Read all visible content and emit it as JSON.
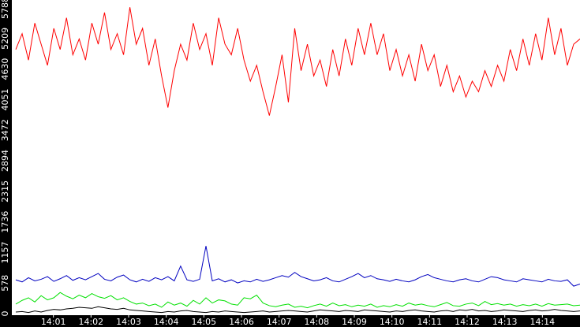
{
  "chart_data": {
    "type": "line",
    "xlim": [
      0,
      15
    ],
    "xticks": [
      {
        "value": 1,
        "label": "14:01"
      },
      {
        "value": 2,
        "label": "14:02"
      },
      {
        "value": 3,
        "label": "14:03"
      },
      {
        "value": 4,
        "label": "14:04"
      },
      {
        "value": 5,
        "label": "14:05"
      },
      {
        "value": 6,
        "label": "14:06"
      },
      {
        "value": 7,
        "label": "14:07"
      },
      {
        "value": 8,
        "label": "14:08"
      },
      {
        "value": 9,
        "label": "14:09"
      },
      {
        "value": 10,
        "label": "14:10"
      },
      {
        "value": 11,
        "label": "14:11"
      },
      {
        "value": 12,
        "label": "14:12"
      },
      {
        "value": 13,
        "label": "14:13"
      },
      {
        "value": 14,
        "label": "14:14"
      }
    ],
    "ylim": [
      0,
      5788
    ],
    "yticks": [
      0,
      578,
      1157,
      1736,
      2315,
      2894,
      3472,
      4051,
      4630,
      5209,
      5788
    ],
    "grid": false,
    "series": [
      {
        "color": "#ff0000",
        "values": [
          5000,
          5300,
          4800,
          5500,
          5100,
          4700,
          5400,
          5000,
          5600,
          4900,
          5200,
          4800,
          5500,
          5100,
          5700,
          5000,
          5300,
          4900,
          5800,
          5100,
          5400,
          4700,
          5200,
          4500,
          3900,
          4600,
          5100,
          4800,
          5500,
          5000,
          5300,
          4700,
          5600,
          5100,
          4900,
          5400,
          4800,
          4400,
          4700,
          4200,
          3750,
          4300,
          4900,
          4000,
          5400,
          4600,
          5100,
          4500,
          4800,
          4300,
          5000,
          4500,
          5200,
          4700,
          5400,
          4900,
          5500,
          4900,
          5300,
          4600,
          5000,
          4500,
          4900,
          4400,
          5100,
          4600,
          4900,
          4300,
          4700,
          4200,
          4500,
          4100,
          4400,
          4200,
          4600,
          4300,
          4700,
          4400,
          5000,
          4600,
          5200,
          4700,
          5300,
          4800,
          5600,
          4900,
          5400,
          4700,
          5100,
          5200
        ]
      },
      {
        "color": "#0000c0",
        "values": [
          640,
          600,
          680,
          620,
          650,
          700,
          610,
          660,
          720,
          630,
          680,
          640,
          700,
          760,
          650,
          620,
          690,
          730,
          640,
          600,
          650,
          610,
          680,
          640,
          700,
          620,
          900,
          640,
          610,
          650,
          1280,
          620,
          660,
          600,
          640,
          580,
          620,
          600,
          650,
          610,
          640,
          680,
          720,
          690,
          780,
          700,
          660,
          620,
          640,
          680,
          620,
          600,
          650,
          700,
          760,
          680,
          720,
          660,
          640,
          610,
          650,
          620,
          600,
          640,
          700,
          740,
          680,
          650,
          620,
          600,
          640,
          660,
          620,
          600,
          650,
          700,
          680,
          640,
          620,
          600,
          660,
          640,
          620,
          600,
          650,
          620,
          610,
          640,
          520,
          560
        ]
      },
      {
        "color": "#00e000",
        "values": [
          180,
          250,
          300,
          220,
          340,
          260,
          300,
          400,
          330,
          280,
          350,
          300,
          380,
          320,
          290,
          340,
          260,
          300,
          230,
          180,
          200,
          150,
          180,
          120,
          220,
          160,
          200,
          140,
          250,
          180,
          300,
          200,
          260,
          240,
          180,
          160,
          300,
          280,
          350,
          200,
          150,
          130,
          160,
          180,
          120,
          140,
          110,
          150,
          180,
          140,
          200,
          150,
          170,
          130,
          160,
          140,
          180,
          120,
          150,
          130,
          170,
          140,
          200,
          160,
          180,
          150,
          130,
          170,
          210,
          150,
          140,
          180,
          200,
          150,
          230,
          170,
          190,
          160,
          180,
          140,
          170,
          150,
          180,
          140,
          190,
          160,
          170,
          180,
          150,
          160
        ]
      },
      {
        "color": "#000000",
        "values": [
          30,
          40,
          20,
          50,
          30,
          60,
          80,
          70,
          90,
          100,
          120,
          110,
          100,
          130,
          110,
          90,
          80,
          100,
          70,
          60,
          50,
          40,
          30,
          20,
          40,
          30,
          50,
          60,
          40,
          30,
          20,
          40,
          30,
          50,
          40,
          30,
          20,
          30,
          40,
          50,
          30,
          40,
          50,
          60,
          50,
          40,
          30,
          50,
          70,
          60,
          50,
          40,
          60,
          50,
          40,
          70,
          60,
          50,
          40,
          30,
          50,
          40,
          60,
          70,
          50,
          40,
          30,
          50,
          60,
          40,
          70,
          60,
          80,
          50,
          60,
          40,
          50,
          70,
          60,
          50,
          40,
          60,
          70,
          50,
          60,
          80,
          60,
          50,
          40,
          50
        ]
      }
    ]
  }
}
